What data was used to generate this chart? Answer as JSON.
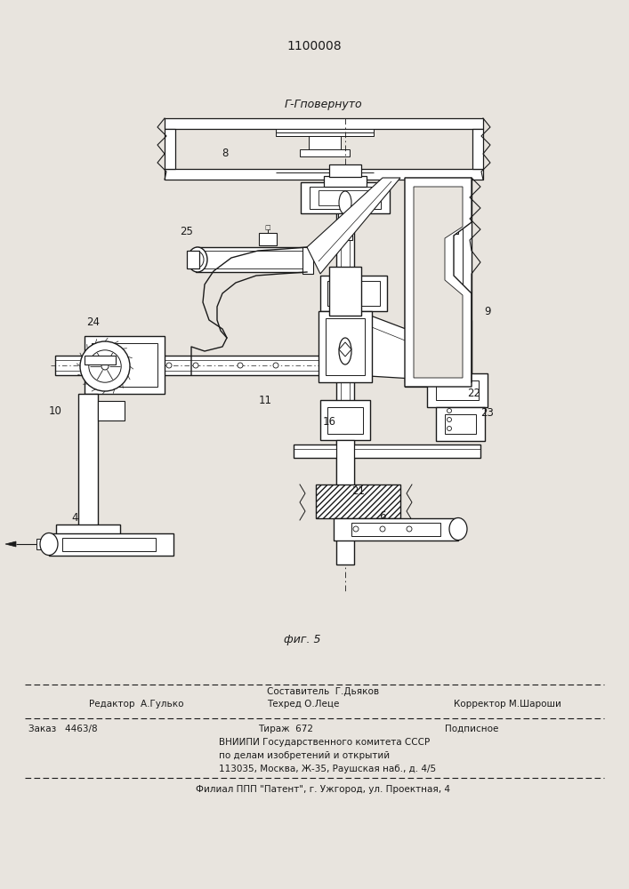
{
  "patent_number": "1100008",
  "figure_label": "фиг. 5",
  "section_label": "Г-Гповернуто",
  "bg_color": "#e8e4de",
  "line_color": "#1a1a1a",
  "footer": {
    "editor": "Редактор  А.Гулько",
    "composer_label": "Составитель",
    "composer": "Г.Дьяков",
    "techred_label": "Техред",
    "techred": "О.Леце",
    "corrector_label": "Корректор",
    "corrector": "М.Шароши",
    "order_label": "Заказ",
    "order": "4463/8",
    "tirazh_label": "Тираж",
    "tirazh": "672",
    "podpisnoe": "Подписное",
    "vniipи": "ВНИИПИ Государственного комитета СССР",
    "po_delam": "по делам изобретений и открытий",
    "address": "113035, Москва, Ж-35, Раушская наб., д. 4/5",
    "filial": "Филиал ППП \"Патент\", г. Ужгород, ул. Проектная, 4"
  }
}
